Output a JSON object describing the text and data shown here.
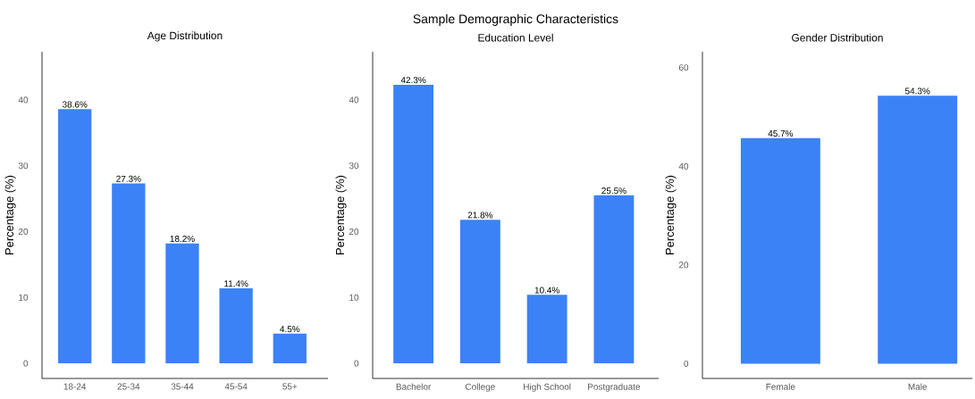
{
  "chart_data": [
    {
      "type": "bar",
      "subtitle": "Age Distribution",
      "ylabel": "Percentage (%)",
      "categories": [
        "18-24",
        "25-34",
        "35-44",
        "45-54",
        "55+"
      ],
      "values": [
        38.6,
        27.3,
        18.2,
        11.4,
        4.5
      ],
      "value_labels": [
        "38.6%",
        "27.3%",
        "18.2%",
        "11.4%",
        "4.5%"
      ],
      "color": "#3b82f6",
      "ylim": [
        -2.3,
        47.3
      ],
      "yticks": [
        0,
        10,
        20,
        30,
        40
      ],
      "grid": false
    },
    {
      "type": "bar",
      "title": "Sample Demographic Characteristics",
      "subtitle": "Education Level",
      "ylabel": "Percentage (%)",
      "categories": [
        "Bachelor",
        "College",
        "High School",
        "Postgraduate"
      ],
      "values": [
        42.3,
        21.8,
        10.4,
        25.5
      ],
      "value_labels": [
        "42.3%",
        "21.8%",
        "10.4%",
        "25.5%"
      ],
      "color": "#3b82f6",
      "ylim": [
        -2.3,
        47.3
      ],
      "yticks": [
        0,
        10,
        20,
        30,
        40
      ],
      "grid": false
    },
    {
      "type": "bar",
      "subtitle": "Gender Distribution",
      "ylabel": "Percentage (%)",
      "categories": [
        "Female",
        "Male"
      ],
      "values": [
        45.7,
        54.3
      ],
      "value_labels": [
        "45.7%",
        "54.3%"
      ],
      "color": "#3b82f6",
      "ylim": [
        -3.0,
        63.2
      ],
      "yticks": [
        0,
        20,
        40,
        60
      ],
      "grid": false
    }
  ]
}
